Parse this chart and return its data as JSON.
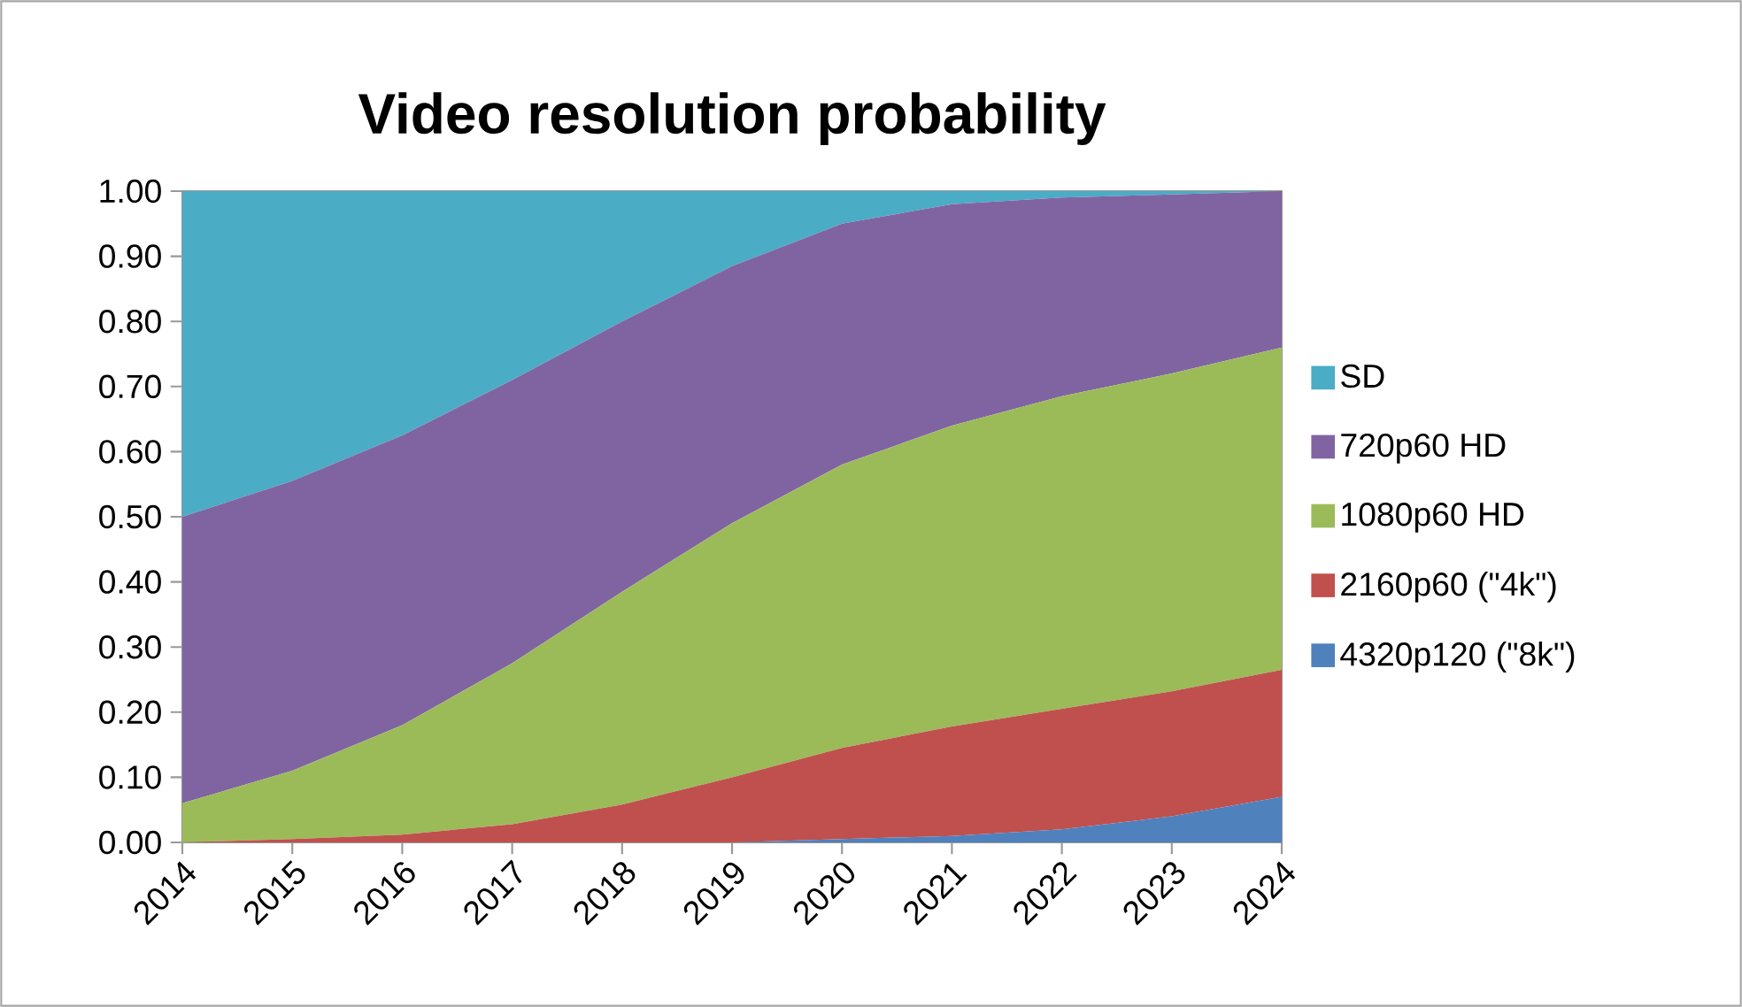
{
  "chart_data": {
    "type": "area",
    "title": "Video resolution probability",
    "stacked": true,
    "legend": "right",
    "grid": false,
    "x": [
      2014,
      2015,
      2016,
      2017,
      2018,
      2019,
      2020,
      2021,
      2022,
      2023,
      2024
    ],
    "xlim": [
      2014,
      2024
    ],
    "xticks": [
      2014,
      2015,
      2016,
      2017,
      2018,
      2019,
      2020,
      2021,
      2022,
      2023,
      2024
    ],
    "ylim": [
      0,
      1
    ],
    "yticks": [
      {
        "value": 0,
        "label": "0.00"
      },
      {
        "value": 0.1,
        "label": "0.10"
      },
      {
        "value": 0.2,
        "label": "0.20"
      },
      {
        "value": 0.3,
        "label": "0.30"
      },
      {
        "value": 0.4,
        "label": "0.40"
      },
      {
        "value": 0.5,
        "label": "0.50"
      },
      {
        "value": 0.6,
        "label": "0.60"
      },
      {
        "value": 0.7,
        "label": "0.70"
      },
      {
        "value": 0.8,
        "label": "0.80"
      },
      {
        "value": 0.9,
        "label": "0.90"
      },
      {
        "value": 1,
        "label": "1.00"
      }
    ],
    "series": [
      {
        "name": "4320p120 (\"8k\")",
        "color": "#4f81bd",
        "values": [
          0,
          0,
          0,
          0,
          0,
          0,
          0.005,
          0.01,
          0.02,
          0.04,
          0.07
        ]
      },
      {
        "name": "2160p60 (\"4k\")",
        "color": "#c0504d",
        "values": [
          0,
          0.005,
          0.012,
          0.028,
          0.058,
          0.1,
          0.14,
          0.168,
          0.185,
          0.192,
          0.195
        ]
      },
      {
        "name": "1080p60 HD",
        "color": "#9bbb59",
        "values": [
          0.06,
          0.105,
          0.168,
          0.247,
          0.327,
          0.39,
          0.435,
          0.462,
          0.48,
          0.488,
          0.495
        ]
      },
      {
        "name": "720p60 HD",
        "color": "#8064a2",
        "values": [
          0.44,
          0.445,
          0.445,
          0.435,
          0.415,
          0.395,
          0.37,
          0.34,
          0.305,
          0.275,
          0.24
        ]
      },
      {
        "name": "SD",
        "color": "#4bacc6",
        "values": [
          0.5,
          0.445,
          0.375,
          0.29,
          0.2,
          0.115,
          0.05,
          0.02,
          0.01,
          0.005,
          0
        ]
      }
    ]
  }
}
